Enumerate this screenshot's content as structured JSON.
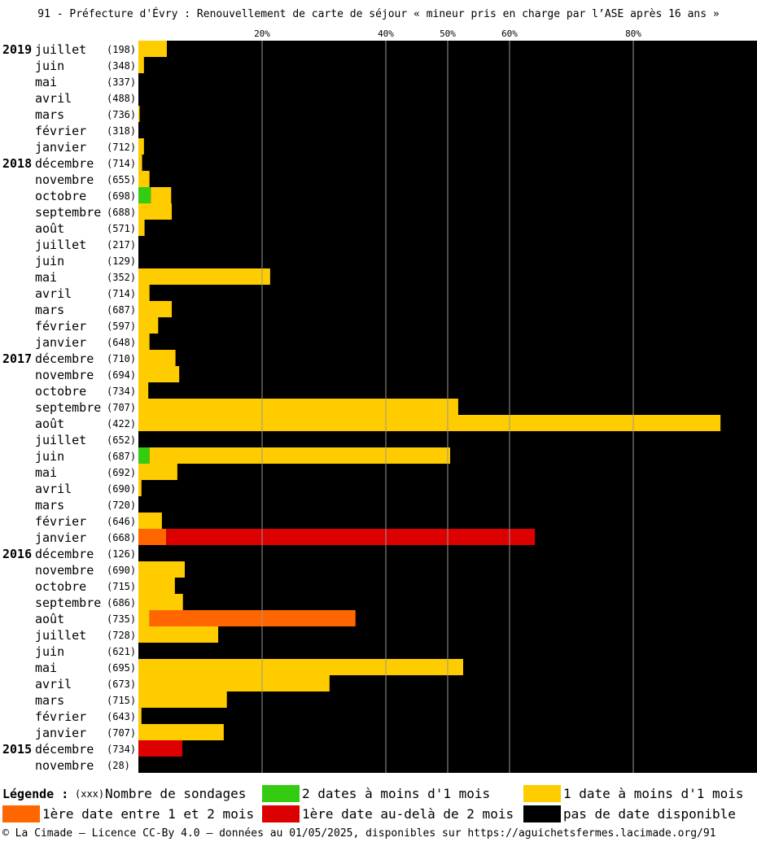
{
  "title": "91 - Préfecture d'Évry : Renouvellement de carte de séjour « mineur pris en charge par l’ASE après 16 ans »",
  "colors": {
    "two_dates_lt_1m": "#33cc11",
    "one_date_lt_1m": "#ffcc00",
    "first_1_2m": "#ff6600",
    "first_gt_2m": "#dd0000",
    "no_date": "#000000"
  },
  "legend": {
    "title": "Légende :",
    "count_marker": "(xxx)",
    "count_label": "Nombre de sondages",
    "two_dates_lt_1m": "2 dates à moins d'1 mois",
    "one_date_lt_1m": "1 date à moins d'1 mois",
    "first_1_2m": "1ère date entre 1 et 2 mois",
    "first_gt_2m": "1ère date au-delà de 2 mois",
    "no_date": "pas de date disponible"
  },
  "footer": "© La Cimade – Licence CC-By 4.0 – données au 01/05/2025, disponibles sur https://aguichetsfermes.lacimade.org/91",
  "chart_data": {
    "type": "bar",
    "orientation": "horizontal-stacked-percent",
    "x_ticks": [
      "20%",
      "40%",
      "50%",
      "60%",
      "80%"
    ],
    "x_tick_values": [
      20,
      40,
      50,
      60,
      80
    ],
    "xlim": [
      0,
      100
    ],
    "series": [
      {
        "key": "two_dates_lt_1m",
        "name": "2 dates à moins d'1 mois"
      },
      {
        "key": "one_date_lt_1m",
        "name": "1 date à moins d'1 mois"
      },
      {
        "key": "first_1_2m",
        "name": "1ère date entre 1 et 2 mois"
      },
      {
        "key": "first_gt_2m",
        "name": "1ère date au-delà de 2 mois"
      },
      {
        "key": "no_date",
        "name": "pas de date disponible"
      }
    ],
    "rows": [
      {
        "year": "2019",
        "month": "juillet",
        "count": "(198)",
        "values": [
          0,
          4.6,
          0,
          0
        ]
      },
      {
        "year": "",
        "month": "juin",
        "count": "(348)",
        "values": [
          0,
          0.9,
          0,
          0
        ]
      },
      {
        "year": "",
        "month": "mai",
        "count": "(337)",
        "values": [
          0,
          0,
          0,
          0
        ]
      },
      {
        "year": "",
        "month": "avril",
        "count": "(488)",
        "values": [
          0,
          0,
          0,
          0
        ]
      },
      {
        "year": "",
        "month": "mars",
        "count": "(736)",
        "values": [
          0,
          0.2,
          0,
          0
        ]
      },
      {
        "year": "",
        "month": "février",
        "count": "(318)",
        "values": [
          0,
          0,
          0,
          0
        ]
      },
      {
        "year": "",
        "month": "janvier",
        "count": "(712)",
        "values": [
          0,
          0.9,
          0,
          0
        ]
      },
      {
        "year": "2018",
        "month": "décembre",
        "count": "(714)",
        "values": [
          0,
          0.6,
          0,
          0
        ]
      },
      {
        "year": "",
        "month": "novembre",
        "count": "(655)",
        "values": [
          0,
          1.8,
          0,
          0
        ]
      },
      {
        "year": "",
        "month": "octobre",
        "count": "(698)",
        "values": [
          2.0,
          3.3,
          0,
          0
        ]
      },
      {
        "year": "",
        "month": "septembre",
        "count": "(688)",
        "values": [
          0,
          5.4,
          0,
          0
        ]
      },
      {
        "year": "",
        "month": "août",
        "count": "(571)",
        "values": [
          0,
          1.0,
          0,
          0
        ]
      },
      {
        "year": "",
        "month": "juillet",
        "count": "(217)",
        "values": [
          0,
          0,
          0,
          0
        ]
      },
      {
        "year": "",
        "month": "juin",
        "count": "(129)",
        "values": [
          0,
          0,
          0,
          0
        ]
      },
      {
        "year": "",
        "month": "mai",
        "count": "(352)",
        "values": [
          0,
          21.3,
          0,
          0
        ]
      },
      {
        "year": "",
        "month": "avril",
        "count": "(714)",
        "values": [
          0,
          1.8,
          0,
          0
        ]
      },
      {
        "year": "",
        "month": "mars",
        "count": "(687)",
        "values": [
          0,
          5.4,
          0,
          0
        ]
      },
      {
        "year": "",
        "month": "février",
        "count": "(597)",
        "values": [
          0,
          3.2,
          0,
          0
        ]
      },
      {
        "year": "",
        "month": "janvier",
        "count": "(648)",
        "values": [
          0,
          1.8,
          0,
          0
        ]
      },
      {
        "year": "2017",
        "month": "décembre",
        "count": "(710)",
        "values": [
          0,
          6.0,
          0,
          0
        ]
      },
      {
        "year": "",
        "month": "novembre",
        "count": "(694)",
        "values": [
          0,
          6.6,
          0,
          0
        ]
      },
      {
        "year": "",
        "month": "octobre",
        "count": "(734)",
        "values": [
          0,
          1.6,
          0,
          0
        ]
      },
      {
        "year": "",
        "month": "septembre",
        "count": "(707)",
        "values": [
          0,
          51.7,
          0,
          0
        ]
      },
      {
        "year": "",
        "month": "août",
        "count": "(422)",
        "values": [
          0,
          94.1,
          0,
          0
        ]
      },
      {
        "year": "",
        "month": "juillet",
        "count": "(652)",
        "values": [
          0,
          0,
          0,
          0
        ]
      },
      {
        "year": "",
        "month": "juin",
        "count": "(687)",
        "values": [
          1.8,
          48.6,
          0,
          0
        ]
      },
      {
        "year": "",
        "month": "mai",
        "count": "(692)",
        "values": [
          0,
          6.3,
          0,
          0
        ]
      },
      {
        "year": "",
        "month": "avril",
        "count": "(690)",
        "values": [
          0,
          0.5,
          0,
          0
        ]
      },
      {
        "year": "",
        "month": "mars",
        "count": "(720)",
        "values": [
          0,
          0,
          0,
          0
        ]
      },
      {
        "year": "",
        "month": "février",
        "count": "(646)",
        "values": [
          0,
          3.8,
          0,
          0
        ]
      },
      {
        "year": "",
        "month": "janvier",
        "count": "(668)",
        "values": [
          0,
          0,
          4.5,
          59.6
        ]
      },
      {
        "year": "2016",
        "month": "décembre",
        "count": "(126)",
        "values": [
          0,
          0,
          0,
          0
        ]
      },
      {
        "year": "",
        "month": "novembre",
        "count": "(690)",
        "values": [
          0,
          7.5,
          0,
          0
        ]
      },
      {
        "year": "",
        "month": "octobre",
        "count": "(715)",
        "values": [
          0,
          5.9,
          0,
          0
        ]
      },
      {
        "year": "",
        "month": "septembre",
        "count": "(686)",
        "values": [
          0,
          7.2,
          0,
          0
        ]
      },
      {
        "year": "",
        "month": "août",
        "count": "(735)",
        "values": [
          0,
          1.8,
          33.3,
          0
        ]
      },
      {
        "year": "",
        "month": "juillet",
        "count": "(728)",
        "values": [
          0,
          12.9,
          0,
          0
        ]
      },
      {
        "year": "",
        "month": "juin",
        "count": "(621)",
        "values": [
          0,
          0,
          0,
          0
        ]
      },
      {
        "year": "",
        "month": "mai",
        "count": "(695)",
        "values": [
          0,
          52.5,
          0,
          0
        ]
      },
      {
        "year": "",
        "month": "avril",
        "count": "(673)",
        "values": [
          0,
          30.9,
          0,
          0
        ]
      },
      {
        "year": "",
        "month": "mars",
        "count": "(715)",
        "values": [
          0,
          14.3,
          0,
          0
        ]
      },
      {
        "year": "",
        "month": "février",
        "count": "(643)",
        "values": [
          0,
          0.5,
          0,
          0
        ]
      },
      {
        "year": "",
        "month": "janvier",
        "count": "(707)",
        "values": [
          0,
          13.8,
          0,
          0
        ]
      },
      {
        "year": "2015",
        "month": "décembre",
        "count": "(734)",
        "values": [
          0,
          0,
          0,
          7.1
        ]
      },
      {
        "year": "",
        "month": "novembre",
        "count": "(28)",
        "values": [
          0,
          0,
          0,
          0
        ]
      }
    ]
  }
}
